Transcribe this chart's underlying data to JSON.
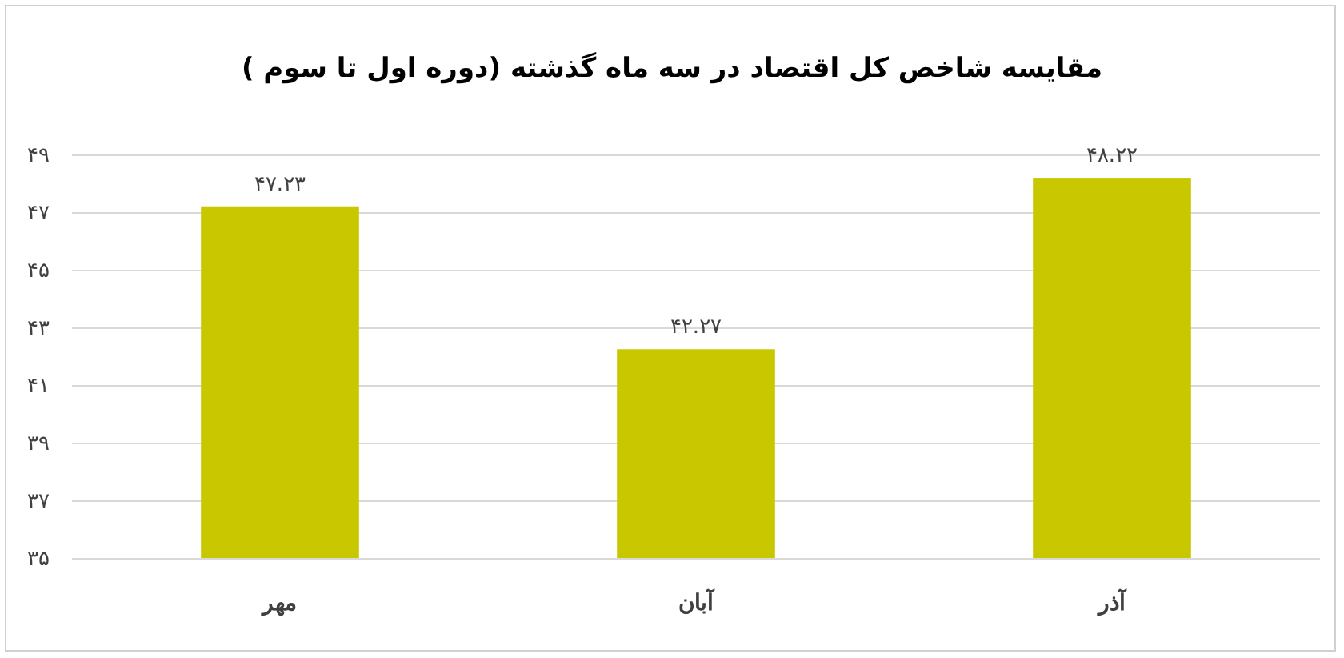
{
  "chart_data": {
    "type": "bar",
    "title": "مقایسه شاخص کل اقتصاد در سه ماه گذشته (دوره اول تا سوم )",
    "categories": [
      "مهر",
      "آبان",
      "آذر"
    ],
    "values": [
      47.23,
      42.27,
      48.22
    ],
    "value_labels": [
      "۴۷.۲۳",
      "۴۲.۲۷",
      "۴۸.۲۲"
    ],
    "color": "#c9c800",
    "ylim": [
      35,
      49
    ],
    "yticks": [
      {
        "value": 35,
        "label": "۳۵"
      },
      {
        "value": 37,
        "label": "۳۷"
      },
      {
        "value": 39,
        "label": "۳۹"
      },
      {
        "value": 41,
        "label": "۴۱"
      },
      {
        "value": 43,
        "label": "۴۳"
      },
      {
        "value": 45,
        "label": "۴۵"
      },
      {
        "value": 47,
        "label": "۴۷"
      },
      {
        "value": 49,
        "label": "۴۹"
      }
    ],
    "grid": "y"
  }
}
